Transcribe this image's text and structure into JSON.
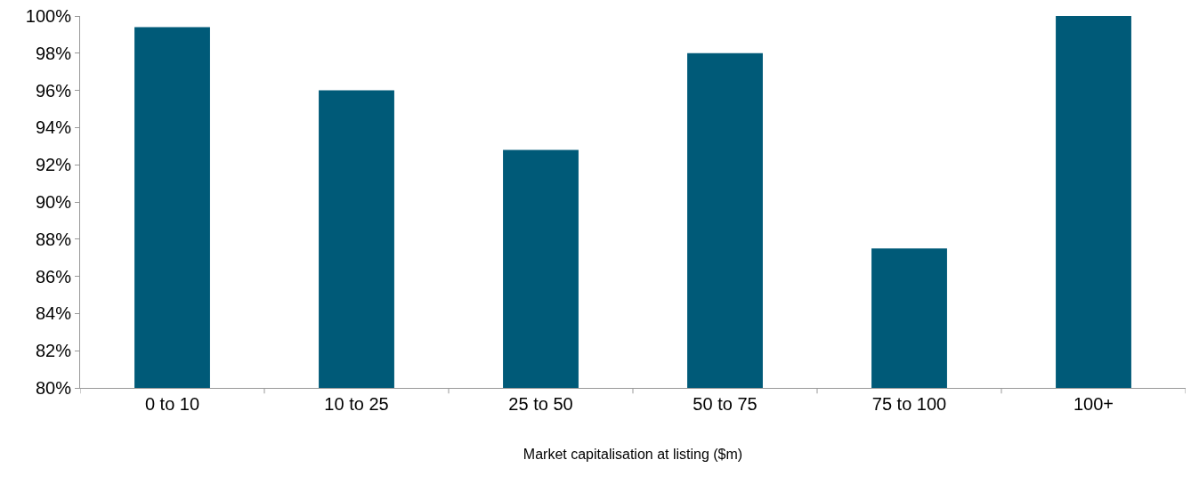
{
  "chart_data": {
    "type": "bar",
    "xlabel": "Market capitalisation at listing ($m)",
    "categories": [
      "0 to 10",
      "10 to 25",
      "25 to 50",
      "50 to 75",
      "75 to 100",
      "100+"
    ],
    "values": [
      99.4,
      96.0,
      92.8,
      98.0,
      87.5,
      100
    ],
    "color": "#005a78",
    "ylim": [
      80,
      100
    ],
    "yticks": [
      {
        "value": 80,
        "label": "80%"
      },
      {
        "value": 82,
        "label": "82%"
      },
      {
        "value": 84,
        "label": "84%"
      },
      {
        "value": 86,
        "label": "86%"
      },
      {
        "value": 88,
        "label": "88%"
      },
      {
        "value": 90,
        "label": "90%"
      },
      {
        "value": 92,
        "label": "92%"
      },
      {
        "value": 94,
        "label": "94%"
      },
      {
        "value": 96,
        "label": "96%"
      },
      {
        "value": 98,
        "label": "98%"
      },
      {
        "value": 100,
        "label": "100%"
      }
    ]
  }
}
